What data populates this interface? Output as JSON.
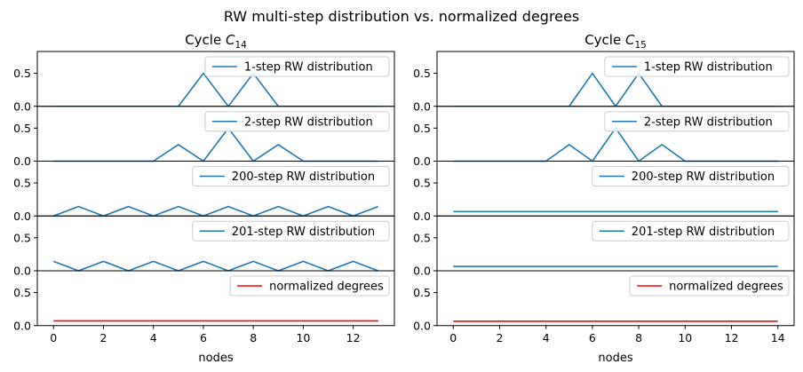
{
  "figure": {
    "suptitle": "RW multi-step distribution vs. normalized degrees"
  },
  "colors": {
    "series": "#1f77b4",
    "degrees": "#ff0000",
    "axes": "#000000",
    "legend_border": "#cccccc"
  },
  "chart_data": [
    {
      "type": "line",
      "title_prefix": "Cycle ",
      "title_math": "C",
      "title_sub": "14",
      "xlabel": "nodes",
      "x": [
        0,
        1,
        2,
        3,
        4,
        5,
        6,
        7,
        8,
        9,
        10,
        11,
        12,
        13
      ],
      "xlim": [
        -0.65,
        13.65
      ],
      "xticks": [
        "0",
        "2",
        "4",
        "6",
        "8",
        "10",
        "12"
      ],
      "xtick_values": [
        0,
        2,
        4,
        6,
        8,
        10,
        12
      ],
      "ylim": [
        0,
        0.83
      ],
      "yticks": [
        "0.0",
        "0.5"
      ],
      "ytick_values": [
        0,
        0.5
      ],
      "panels": [
        {
          "name": "1-step RW distribution",
          "color": "#1f77b4",
          "values": [
            0,
            0,
            0,
            0,
            0,
            0,
            0.5,
            0,
            0.5,
            0,
            0,
            0,
            0,
            0
          ]
        },
        {
          "name": "2-step RW distribution",
          "color": "#1f77b4",
          "values": [
            0,
            0,
            0,
            0,
            0,
            0.25,
            0,
            0.5,
            0,
            0.25,
            0,
            0,
            0,
            0
          ]
        },
        {
          "name": "200-step RW distribution",
          "color": "#1f77b4",
          "values": [
            0,
            0.143,
            0,
            0.143,
            0,
            0.143,
            0,
            0.143,
            0,
            0.143,
            0,
            0.143,
            0,
            0.143
          ]
        },
        {
          "name": "201-step RW distribution",
          "color": "#1f77b4",
          "values": [
            0.143,
            0,
            0.143,
            0,
            0.143,
            0,
            0.143,
            0,
            0.143,
            0,
            0.143,
            0,
            0.143,
            0
          ]
        },
        {
          "name": "normalized degrees",
          "color": "#ff0000",
          "values": [
            0.0714,
            0.0714,
            0.0714,
            0.0714,
            0.0714,
            0.0714,
            0.0714,
            0.0714,
            0.0714,
            0.0714,
            0.0714,
            0.0714,
            0.0714,
            0.0714
          ]
        }
      ]
    },
    {
      "type": "line",
      "title_prefix": "Cycle ",
      "title_math": "C",
      "title_sub": "15",
      "xlabel": "nodes",
      "x": [
        0,
        1,
        2,
        3,
        4,
        5,
        6,
        7,
        8,
        9,
        10,
        11,
        12,
        13,
        14
      ],
      "xlim": [
        -0.7,
        14.7
      ],
      "xticks": [
        "0",
        "2",
        "4",
        "6",
        "8",
        "10",
        "12",
        "14"
      ],
      "xtick_values": [
        0,
        2,
        4,
        6,
        8,
        10,
        12,
        14
      ],
      "ylim": [
        0,
        0.83
      ],
      "yticks": [
        "0.0",
        "0.5"
      ],
      "ytick_values": [
        0,
        0.5
      ],
      "panels": [
        {
          "name": "1-step RW distribution",
          "color": "#1f77b4",
          "values": [
            0,
            0,
            0,
            0,
            0,
            0,
            0.5,
            0,
            0.5,
            0,
            0,
            0,
            0,
            0,
            0
          ]
        },
        {
          "name": "2-step RW distribution",
          "color": "#1f77b4",
          "values": [
            0,
            0,
            0,
            0,
            0,
            0.25,
            0,
            0.5,
            0,
            0.25,
            0,
            0,
            0,
            0,
            0
          ]
        },
        {
          "name": "200-step RW distribution",
          "color": "#1f77b4",
          "values": [
            0.0667,
            0.0667,
            0.0667,
            0.0667,
            0.0667,
            0.0667,
            0.0667,
            0.0667,
            0.0667,
            0.0667,
            0.0667,
            0.0667,
            0.0667,
            0.0667,
            0.0667
          ]
        },
        {
          "name": "201-step RW distribution",
          "color": "#1f77b4",
          "values": [
            0.0667,
            0.0667,
            0.0667,
            0.0667,
            0.0667,
            0.0667,
            0.0667,
            0.0667,
            0.0667,
            0.0667,
            0.0667,
            0.0667,
            0.0667,
            0.0667,
            0.0667
          ]
        },
        {
          "name": "normalized degrees",
          "color": "#ff0000",
          "values": [
            0.0667,
            0.0667,
            0.0667,
            0.0667,
            0.0667,
            0.0667,
            0.0667,
            0.0667,
            0.0667,
            0.0667,
            0.0667,
            0.0667,
            0.0667,
            0.0667,
            0.0667
          ]
        }
      ]
    }
  ]
}
